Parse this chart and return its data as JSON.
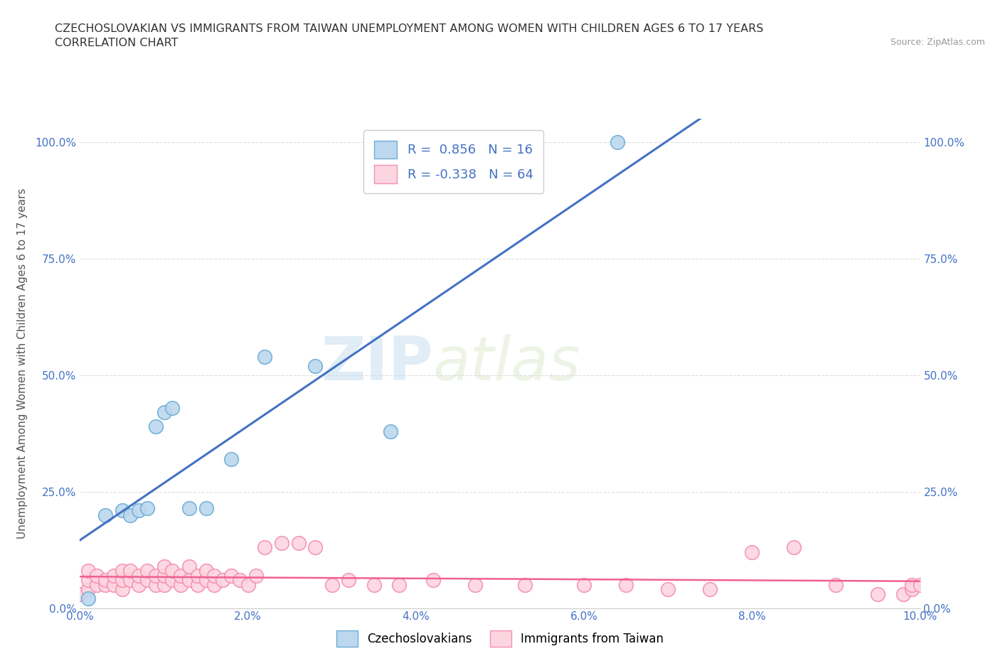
{
  "title_line1": "CZECHOSLOVAKIAN VS IMMIGRANTS FROM TAIWAN UNEMPLOYMENT AMONG WOMEN WITH CHILDREN AGES 6 TO 17 YEARS",
  "title_line2": "CORRELATION CHART",
  "source": "Source: ZipAtlas.com",
  "ylabel": "Unemployment Among Women with Children Ages 6 to 17 years",
  "xlim": [
    0.0,
    0.1
  ],
  "ylim": [
    0.0,
    1.05
  ],
  "xticks": [
    0.0,
    0.02,
    0.04,
    0.06,
    0.08,
    0.1
  ],
  "xticklabels": [
    "0.0%",
    "2.0%",
    "4.0%",
    "6.0%",
    "8.0%",
    "10.0%"
  ],
  "yticks": [
    0.0,
    0.25,
    0.5,
    0.75,
    1.0
  ],
  "yticklabels": [
    "0.0%",
    "25.0%",
    "50.0%",
    "75.0%",
    "100.0%"
  ],
  "blue_color": "#6baed6",
  "blue_fill": "#bdd7ee",
  "pink_color": "#f48fb1",
  "pink_fill": "#fcd5e0",
  "blue_R": 0.856,
  "blue_N": 16,
  "pink_R": -0.338,
  "pink_N": 64,
  "blue_scatter_x": [
    0.001,
    0.003,
    0.005,
    0.006,
    0.007,
    0.008,
    0.009,
    0.01,
    0.011,
    0.013,
    0.015,
    0.018,
    0.022,
    0.028,
    0.037,
    0.064
  ],
  "blue_scatter_y": [
    0.02,
    0.2,
    0.21,
    0.2,
    0.21,
    0.215,
    0.39,
    0.42,
    0.43,
    0.215,
    0.215,
    0.32,
    0.54,
    0.52,
    0.38,
    1.0
  ],
  "pink_scatter_x": [
    0.0,
    0.001,
    0.001,
    0.001,
    0.002,
    0.002,
    0.003,
    0.003,
    0.004,
    0.004,
    0.005,
    0.005,
    0.005,
    0.006,
    0.006,
    0.007,
    0.007,
    0.008,
    0.008,
    0.009,
    0.009,
    0.01,
    0.01,
    0.01,
    0.011,
    0.011,
    0.012,
    0.012,
    0.013,
    0.013,
    0.014,
    0.014,
    0.015,
    0.015,
    0.016,
    0.016,
    0.017,
    0.018,
    0.019,
    0.02,
    0.021,
    0.022,
    0.024,
    0.026,
    0.028,
    0.03,
    0.032,
    0.035,
    0.038,
    0.042,
    0.047,
    0.053,
    0.06,
    0.065,
    0.07,
    0.075,
    0.08,
    0.085,
    0.09,
    0.095,
    0.098,
    0.099,
    0.099,
    0.1
  ],
  "pink_scatter_y": [
    0.03,
    0.04,
    0.06,
    0.08,
    0.05,
    0.07,
    0.05,
    0.06,
    0.05,
    0.07,
    0.04,
    0.06,
    0.08,
    0.06,
    0.08,
    0.05,
    0.07,
    0.06,
    0.08,
    0.05,
    0.07,
    0.05,
    0.07,
    0.09,
    0.06,
    0.08,
    0.05,
    0.07,
    0.06,
    0.09,
    0.05,
    0.07,
    0.06,
    0.08,
    0.05,
    0.07,
    0.06,
    0.07,
    0.06,
    0.05,
    0.07,
    0.13,
    0.14,
    0.14,
    0.13,
    0.05,
    0.06,
    0.05,
    0.05,
    0.06,
    0.05,
    0.05,
    0.05,
    0.05,
    0.04,
    0.04,
    0.12,
    0.13,
    0.05,
    0.03,
    0.03,
    0.04,
    0.05,
    0.05
  ],
  "watermark_zip": "ZIP",
  "watermark_atlas": "atlas",
  "background_color": "#ffffff",
  "grid_color": "#dddddd",
  "tick_color": "#4472c4",
  "legend_text_color": "#4472c4"
}
